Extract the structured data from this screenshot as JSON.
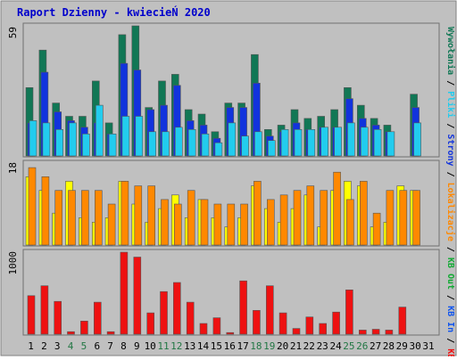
{
  "title": "Raport Dzienny -  kwiecieŃ  2020",
  "colors": {
    "frame_bg": "#c0c0c0",
    "title": "#0000cc",
    "visits": "#117755",
    "pages": "#1133dd",
    "files": "#22ccee",
    "hits_kb": "#ff8800",
    "sites": "#ffff00",
    "kb_out": "#ee1111",
    "weekend": "#227744"
  },
  "panel_labels": {
    "top_max": "59",
    "mid_max": "18",
    "bottom_max": "1000"
  },
  "legend": {
    "right_top": [
      "Wywołania",
      "Pliki",
      "Strony"
    ],
    "right_mid": [
      "Lokalizacje",
      "KB Out"
    ],
    "right_bottom": [
      "KB In",
      "KB F"
    ]
  },
  "chart_data": [
    {
      "type": "bar",
      "title": "",
      "categories": [
        "1",
        "2",
        "3",
        "4",
        "5",
        "6",
        "7",
        "8",
        "9",
        "10",
        "11",
        "12",
        "13",
        "14",
        "15",
        "16",
        "17",
        "18",
        "19",
        "20",
        "21",
        "22",
        "23",
        "24",
        "25",
        "26",
        "27",
        "28",
        "29",
        "30",
        "31"
      ],
      "weekend_days": [
        "4",
        "5",
        "11",
        "12",
        "18",
        "19",
        "25",
        "26"
      ],
      "ylim": [
        0,
        59
      ],
      "series": [
        {
          "name": "Wywołania",
          "values": [
            31,
            48,
            24,
            18,
            18,
            34,
            15,
            55,
            59,
            22,
            34,
            37,
            21,
            19,
            11,
            24,
            24,
            46,
            12,
            14,
            21,
            17,
            18,
            21,
            31,
            23,
            17,
            14,
            0,
            28,
            0
          ]
        },
        {
          "name": "Strony",
          "values": [
            15,
            38,
            20,
            16,
            13,
            15,
            10,
            42,
            39,
            21,
            23,
            32,
            16,
            14,
            8,
            22,
            22,
            33,
            9,
            11,
            15,
            12,
            13,
            13,
            26,
            17,
            14,
            11,
            0,
            22,
            0
          ]
        },
        {
          "name": "Pliki",
          "values": [
            16,
            15,
            12,
            15,
            10,
            23,
            10,
            18,
            18,
            11,
            11,
            13,
            12,
            10,
            6,
            15,
            9,
            11,
            7,
            12,
            12,
            12,
            13,
            13,
            15,
            13,
            12,
            11,
            0,
            15,
            0
          ]
        }
      ]
    },
    {
      "type": "bar",
      "title": "",
      "categories": [
        "1",
        "2",
        "3",
        "4",
        "5",
        "6",
        "7",
        "8",
        "9",
        "10",
        "11",
        "12",
        "13",
        "14",
        "15",
        "16",
        "17",
        "18",
        "19",
        "20",
        "21",
        "22",
        "23",
        "24",
        "25",
        "26",
        "27",
        "28",
        "29",
        "30",
        "31"
      ],
      "ylim": [
        0,
        18
      ],
      "series": [
        {
          "name": "Lokalizacje",
          "values": [
            15,
            12,
            7,
            14,
            6,
            5,
            6,
            14,
            9,
            5,
            8,
            11,
            6,
            10,
            6,
            4,
            6,
            13,
            8,
            5,
            8,
            11,
            4,
            12,
            14,
            13,
            4,
            5,
            13,
            12,
            0
          ]
        },
        {
          "name": "KB Out",
          "values": [
            17,
            15,
            12,
            12,
            12,
            12,
            9,
            14,
            13,
            13,
            10,
            9,
            12,
            10,
            9,
            9,
            9,
            14,
            10,
            11,
            12,
            13,
            12,
            16,
            10,
            14,
            7,
            12,
            12,
            12,
            0
          ]
        }
      ]
    },
    {
      "type": "bar",
      "title": "",
      "categories": [
        "1",
        "2",
        "3",
        "4",
        "5",
        "6",
        "7",
        "8",
        "9",
        "10",
        "11",
        "12",
        "13",
        "14",
        "15",
        "16",
        "17",
        "18",
        "19",
        "20",
        "21",
        "22",
        "23",
        "24",
        "25",
        "26",
        "27",
        "28",
        "29",
        "30",
        "31"
      ],
      "ylim": [
        0,
        1000
      ],
      "series": [
        {
          "name": "KB F",
          "values": [
            470,
            590,
            400,
            30,
            160,
            390,
            30,
            1000,
            940,
            260,
            520,
            630,
            390,
            130,
            200,
            20,
            650,
            290,
            590,
            260,
            70,
            210,
            130,
            270,
            540,
            50,
            60,
            50,
            330,
            0,
            0
          ]
        }
      ]
    }
  ]
}
